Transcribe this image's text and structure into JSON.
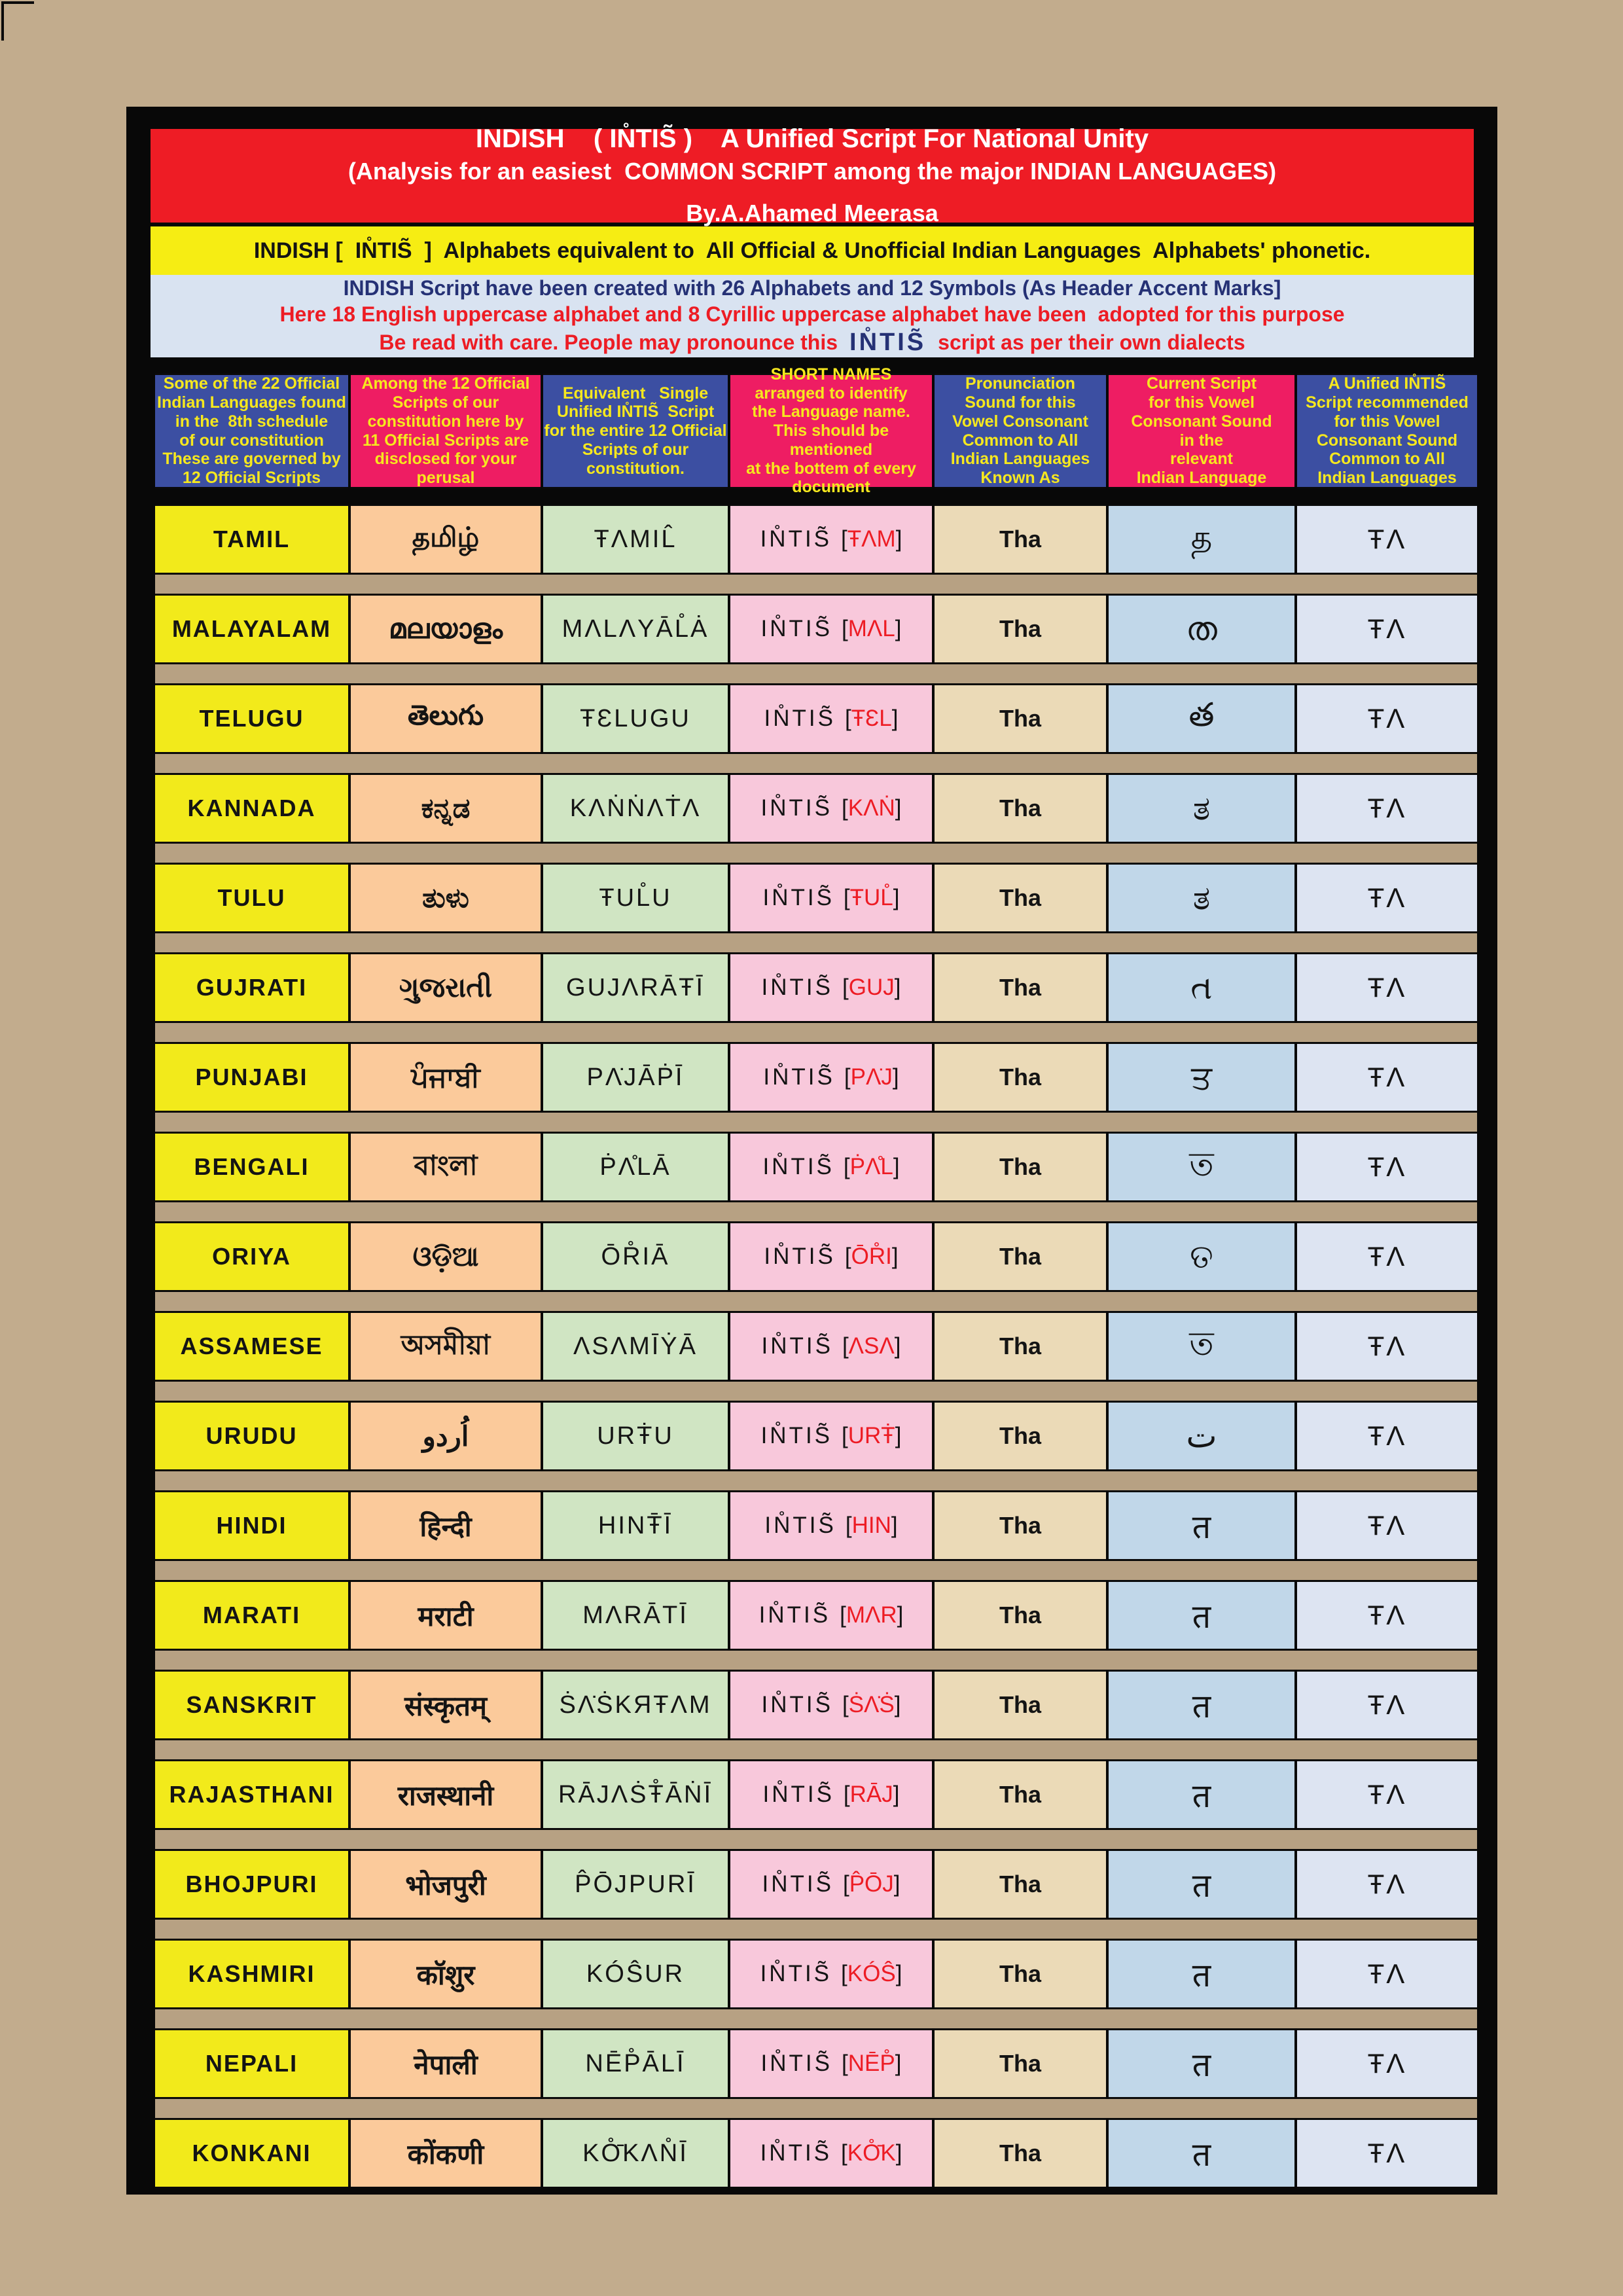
{
  "header": {
    "title_line1": "INDISH    ( IN̊TIS̃ )    A Unified Script For National Unity",
    "title_line2": "(Analysis for an easiest  COMMON SCRIPT among the major INDIAN LANGUAGES)",
    "byline": "By.A.Ahamed Meerasa",
    "subtitle_band": "INDISH [  IN̊TIS̃  ]  Alphabets equivalent to  All Official & Unofficial Indian Languages  Alphabets' phonetic.",
    "note_line1": "INDISH Script have been created with 26 Alphabets and 12 Symbols (As Header Accent Marks]",
    "note_line2": "Here 18 English uppercase alphabet and 8 Cyrillic uppercase alphabet have been  adopted for this purpose",
    "note_line3_pre": "Be read with care. People may pronounce this",
    "note_line3_script": "IN̊TIS̃",
    "note_line3_post": "script as per their own dialects"
  },
  "columns": [
    {
      "text": "Some of the 22 Official\nIndian Languages found\nin the  8th schedule\nof our constitution\nThese are governed by\n12 Official Scripts"
    },
    {
      "text": "Among the 12 Official\nScripts of our\nconstitution here by\n11 Official Scripts are\ndisclosed for your\nperusal"
    },
    {
      "text": "Equivalent   Single\nUnified IN̊TIS̃  Script\nfor the entire 12 Official\nScripts of our\nconstitution."
    },
    {
      "text": "SHORT NAMES\narranged to identify\nthe Language name.\nThis should be mentioned\nat the bottem of every\ndocument"
    },
    {
      "text": "Pronunciation\nSound for this\nVowel Consonant\nCommon to All\nIndian Languages\nKnown As"
    },
    {
      "text": "Current Script\nfor this Vowel\nConsonant Sound\nin the\nrelevant\nIndian Language"
    },
    {
      "text": "A Unified IN̊TIS̃\nScript recommended\nfor this Vowel\nConsonant Sound\nCommon to All\nIndian Languages"
    }
  ],
  "table": {
    "intis": "IN̊TIS̃",
    "bracket_open": "[",
    "bracket_close": "]"
  },
  "rows": [
    {
      "lang": "TAMIL",
      "native": "தமிழ்",
      "unified": "ŦΛMIL̂",
      "short": "ŦΛM",
      "pron": "Tha",
      "current": "த",
      "final": "ŦΛ"
    },
    {
      "lang": "MALAYALAM",
      "native": "മലയാളം",
      "unified": "MΛLΛYĀL̊Ȧ",
      "short": "MΛL",
      "pron": "Tha",
      "current": "ത",
      "final": "ŦΛ"
    },
    {
      "lang": "TELUGU",
      "native": "తెలుగు",
      "unified": "ŦƐLUGU",
      "short": "ŦƐL",
      "pron": "Tha",
      "current": "త",
      "final": "ŦΛ"
    },
    {
      "lang": "KANNADA",
      "native": "ಕನ್ನಡ",
      "unified": "KΛṄṄΛṪΛ",
      "short": "KΛṄ",
      "pron": "Tha",
      "current": "ತ",
      "final": "ŦΛ"
    },
    {
      "lang": "TULU",
      "native": "ತುಳು",
      "unified": "ŦUL̊U",
      "short": "ŦUL̊",
      "pron": "Tha",
      "current": "ತ",
      "final": "ŦΛ"
    },
    {
      "lang": "GUJRATI",
      "native": "ગુજરાતી",
      "unified": "GUJΛRĀŦĪ",
      "short": "GUJ",
      "pron": "Tha",
      "current": "ત",
      "final": "ŦΛ"
    },
    {
      "lang": "PUNJABI",
      "native": "ਪੰਜਾਬੀ",
      "unified": "PΛ̇JĀṖĪ",
      "short": "PΛ̇J",
      "pron": "Tha",
      "current": "ਤ",
      "final": "ŦΛ"
    },
    {
      "lang": "BENGALI",
      "native": "বাংলা",
      "unified": "ṖΛ̊LĀ",
      "short": "ṖΛ̊L",
      "pron": "Tha",
      "current": "ত",
      "final": "ŦΛ"
    },
    {
      "lang": "ORIYA",
      "native": "ଓଡ଼ିଆ",
      "unified": "ŌR̊IĀ",
      "short": "ŌR̊I",
      "pron": "Tha",
      "current": "ତ",
      "final": "ŦΛ"
    },
    {
      "lang": "ASSAMESE",
      "native": "অসমীয়া",
      "unified": "ΛSΛMĪẎĀ",
      "short": "ΛSΛ",
      "pron": "Tha",
      "current": "ত",
      "final": "ŦΛ"
    },
    {
      "lang": "URUDU",
      "native": "اُردو",
      "unified": "URŦ̇U",
      "short": "URŦ̇",
      "pron": "Tha",
      "current": "ت",
      "final": "ŦΛ"
    },
    {
      "lang": "HINDI",
      "native": "हिन्दी",
      "unified": "HINŦ̄Ī",
      "short": "HIN",
      "pron": "Tha",
      "current": "त",
      "final": "ŦΛ"
    },
    {
      "lang": "MARATI",
      "native": "मराटी",
      "unified": "MΛRĀTĪ",
      "short": "MΛR",
      "pron": "Tha",
      "current": "त",
      "final": "ŦΛ"
    },
    {
      "lang": "SANSKRIT",
      "native": "संस्कृतम्",
      "unified": "ṠΛ̇ṠKЯŦΛM",
      "short": "ṠΛ̇Ṡ",
      "pron": "Tha",
      "current": "त",
      "final": "ŦΛ"
    },
    {
      "lang": "RAJASTHANI",
      "native": "राजस्थानी",
      "unified": "RĀJΛṠŦ̊ĀṄĪ",
      "short": "RĀJ",
      "pron": "Tha",
      "current": "त",
      "final": "ŦΛ"
    },
    {
      "lang": "BHOJPURI",
      "native": "भोजपुरी",
      "unified": "P̂ŌJPURĪ",
      "short": "P̂ŌJ",
      "pron": "Tha",
      "current": "त",
      "final": "ŦΛ"
    },
    {
      "lang": "KASHMIRI",
      "native": "कॉशुर",
      "unified": "KÓŜUR",
      "short": "KÓŜ",
      "pron": "Tha",
      "current": "त",
      "final": "ŦΛ"
    },
    {
      "lang": "NEPALI",
      "native": "नेपाली",
      "unified": "NĒP̊ĀLĪ",
      "short": "NĒP̊",
      "pron": "Tha",
      "current": "त",
      "final": "ŦΛ"
    },
    {
      "lang": "KONKANI",
      "native": "कोंकणी",
      "unified": "KO̊̄KΛN̊Ī",
      "short": "KO̊̄K",
      "pron": "Tha",
      "current": "त",
      "final": "ŦΛ"
    }
  ],
  "colors": {
    "page_background": "#c2ac8d",
    "frame_black": "#080808",
    "title_red": "#ee1c25",
    "band_yellow": "#f6ed13",
    "band_lightblue": "#d9e3f1",
    "navy_text": "#253175",
    "red_text": "#ed1c24",
    "header_indigo": "#3c4fa2",
    "header_pink": "#ee1d63",
    "header_text_yellow": "#f6e81e",
    "col_language_yellow": "#f2ea1b",
    "col_native_orange": "#fbca9b",
    "col_unified_green": "#d0e5c3",
    "col_short_pink": "#f8c8db",
    "col_pron_tan": "#ebdab7",
    "col_current_blue": "#c1d7e9",
    "col_final_blue": "#dde4f2",
    "row_separator_tan": "#b7a183"
  }
}
